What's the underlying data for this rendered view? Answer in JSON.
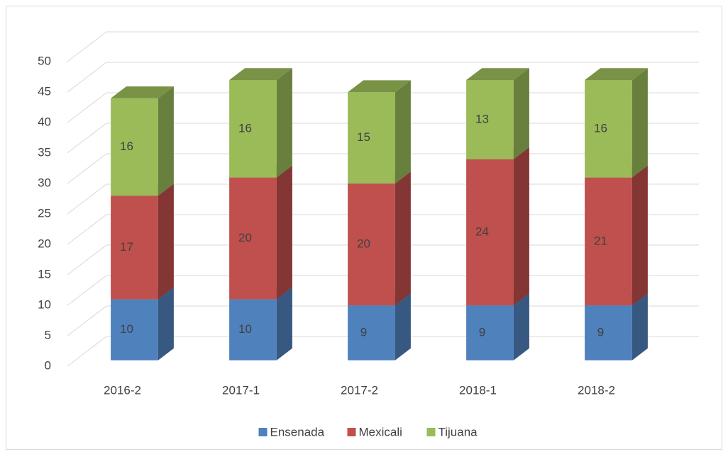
{
  "chart_data": {
    "type": "bar3d_stacked",
    "categories": [
      "2016-2",
      "2017-1",
      "2017-2",
      "2018-1",
      "2018-2"
    ],
    "series": [
      {
        "name": "Ensenada",
        "color": "#4f81bd",
        "values": [
          10,
          10,
          9,
          9,
          9
        ]
      },
      {
        "name": "Mexicali",
        "color": "#c0504d",
        "values": [
          17,
          20,
          20,
          24,
          21
        ]
      },
      {
        "name": "Tijuana",
        "color": "#9bbb59",
        "values": [
          16,
          16,
          15,
          13,
          16
        ]
      }
    ],
    "ylim": [
      0,
      50
    ],
    "yticks": [
      0,
      5,
      10,
      15,
      20,
      25,
      30,
      35,
      40,
      45,
      50
    ],
    "grid": true,
    "legend": "bottom"
  }
}
